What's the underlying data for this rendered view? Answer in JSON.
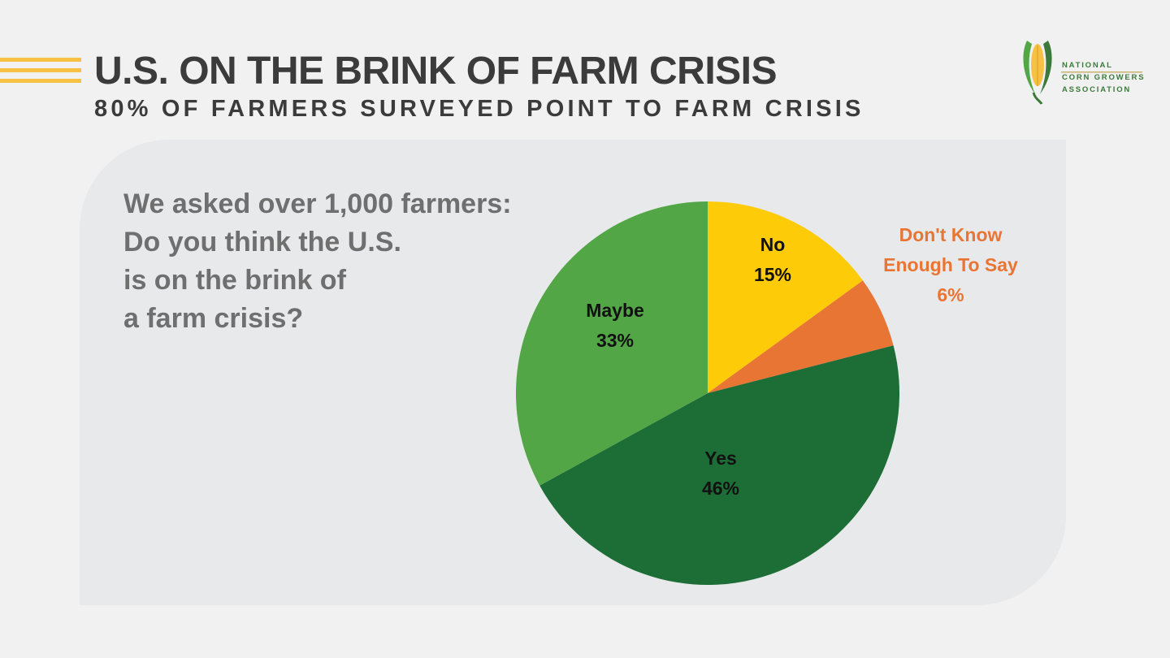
{
  "header": {
    "title": "U.S. ON THE BRINK OF FARM CRISIS",
    "subtitle": "80% OF FARMERS SURVEYED POINT TO FARM CRISIS"
  },
  "logo": {
    "lines": [
      "NATIONAL",
      "CORN GROWERS",
      "ASSOCIATION"
    ],
    "icon": "corn-icon"
  },
  "question": {
    "lines": [
      "We asked over 1,000 farmers:",
      "Do you think the U.S.",
      "is on the brink of",
      "a farm crisis?"
    ]
  },
  "colors": {
    "accent_stripes": "#f7c244",
    "no": "#fecb08",
    "dont_know": "#e97535",
    "yes": "#1d6d37",
    "maybe": "#52a646",
    "dont_know_label": "#e97535"
  },
  "chart_data": {
    "type": "pie",
    "start_angle_deg": 0,
    "direction": "clockwise",
    "slices": [
      {
        "key": "no",
        "label": "No",
        "value": 15,
        "value_label": "15%",
        "color": "#fecb08",
        "label_color": "#111111"
      },
      {
        "key": "dont_know",
        "label_lines": [
          "Don't Know",
          "Enough To Say"
        ],
        "value": 6,
        "value_label": "6%",
        "color": "#e97535",
        "label_color": "#e97535"
      },
      {
        "key": "yes",
        "label": "Yes",
        "value": 46,
        "value_label": "46%",
        "color": "#1d6d37",
        "label_color": "#111111"
      },
      {
        "key": "maybe",
        "label": "Maybe",
        "value": 33,
        "value_label": "33%",
        "color": "#52a646",
        "label_color": "#111111"
      }
    ]
  }
}
